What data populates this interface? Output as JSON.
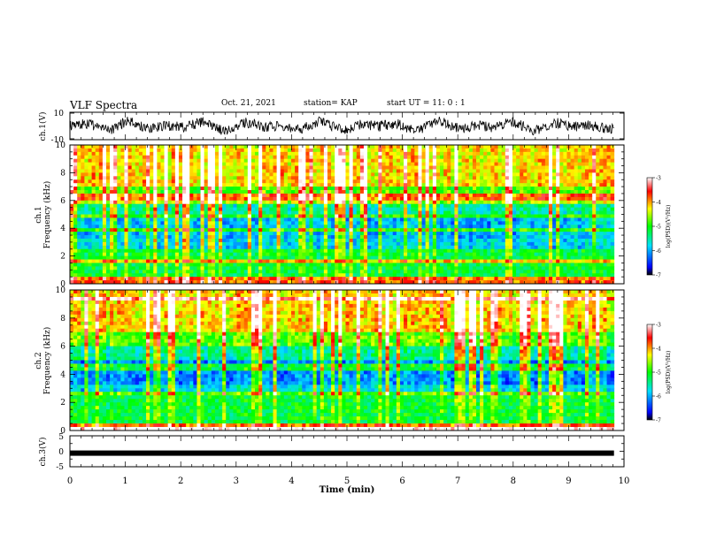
{
  "header": {
    "title": "VLF Spectra",
    "date": "Oct. 21, 2021",
    "station": "station= KAP",
    "start_ut": "start  UT =   11: 0  : 1"
  },
  "chart_data": [
    {
      "type": "line",
      "panel": "ch1-waveform",
      "ylabel": "ch.1(V)",
      "ylim": [
        -10,
        10
      ],
      "yticks": [
        "10",
        "-10"
      ],
      "xlim": [
        0,
        10
      ],
      "data_xmax": 9.82,
      "color": "#000000"
    },
    {
      "type": "heatmap",
      "panel": "ch1-spectrogram",
      "ylabel": "ch.1\nFrequency (kHz)",
      "ylim": [
        0,
        10
      ],
      "yticks": [
        "0",
        "2",
        "4",
        "6",
        "8",
        "10"
      ],
      "xlim": [
        0,
        10
      ],
      "data_xmax": 9.82,
      "colorbar": {
        "label": "log(PSD)(V²/Hz)",
        "range": [
          -7,
          -3
        ],
        "ticks": [
          "-3",
          "-4",
          "-5",
          "-6",
          "-7"
        ]
      }
    },
    {
      "type": "heatmap",
      "panel": "ch2-spectrogram",
      "ylabel": "ch.2\nFrequency (kHz)",
      "ylim": [
        0,
        10
      ],
      "yticks": [
        "0",
        "2",
        "4",
        "6",
        "8",
        "10"
      ],
      "xlim": [
        0,
        10
      ],
      "data_xmax": 9.82,
      "colorbar": {
        "label": "log(PSD)(V²/Hz)",
        "range": [
          -7,
          -3
        ],
        "ticks": [
          "-3",
          "-4",
          "-5",
          "-6",
          "-7"
        ]
      }
    },
    {
      "type": "line",
      "panel": "ch3-waveform",
      "ylabel": "ch.3(V)",
      "ylim": [
        -5,
        5
      ],
      "yticks": [
        "5",
        "0",
        "-5"
      ],
      "xlim": [
        0,
        10
      ],
      "data_xmax": 9.82,
      "level": -0.6,
      "color": "#000000"
    }
  ],
  "xaxis": {
    "label": "Time (min)",
    "ticks": [
      "0",
      "1",
      "2",
      "3",
      "4",
      "5",
      "6",
      "7",
      "8",
      "9",
      "10"
    ]
  }
}
